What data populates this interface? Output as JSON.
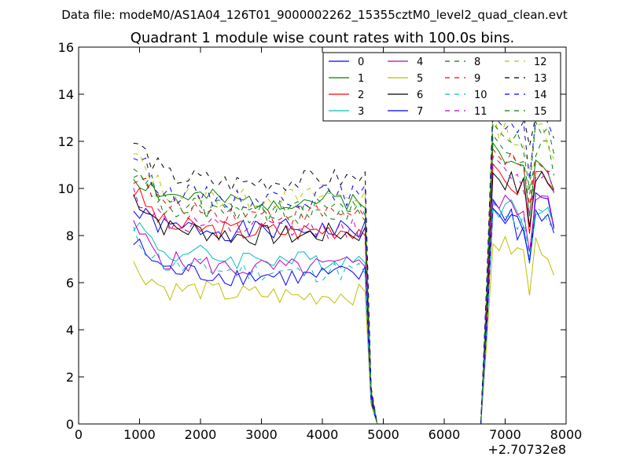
{
  "chart_data": {
    "type": "line",
    "suptitle": "Data file: modeM0/AS1A04_126T01_9000002262_15355cztM0_level2_quad_clean.evt",
    "title": "Quadrant 1 module wise count rates with 100.0s bins.",
    "xlabel": "",
    "ylabel": "",
    "xlim": [
      0,
      8000
    ],
    "ylim": [
      0,
      16
    ],
    "x_offset_label": "+2.70732e8",
    "xticks": [
      "0",
      "1000",
      "2000",
      "3000",
      "4000",
      "5000",
      "6000",
      "7000",
      "8000"
    ],
    "yticks": [
      "0",
      "2",
      "4",
      "6",
      "8",
      "10",
      "12",
      "14",
      "16"
    ],
    "legend_position": "top-right",
    "x": [
      900,
      1000,
      1100,
      1200,
      1300,
      1400,
      1500,
      1600,
      1700,
      1800,
      1900,
      2000,
      2100,
      2200,
      2300,
      2400,
      2500,
      2600,
      2700,
      2800,
      2900,
      3000,
      3100,
      3200,
      3300,
      3400,
      3500,
      3600,
      3700,
      3800,
      3900,
      4000,
      4100,
      4200,
      4300,
      4400,
      4500,
      4600,
      4700,
      4800,
      4900,
      5000,
      5100,
      5200,
      5300,
      5400,
      5500,
      5600,
      5700,
      5800,
      5900,
      6000,
      6100,
      6200,
      6300,
      6400,
      6500,
      6600,
      6700,
      6800,
      6900,
      7000,
      7100,
      7200,
      7300,
      7400,
      7500,
      7600,
      7700,
      7800
    ],
    "series": [
      {
        "name": "0",
        "color": "#0000ff",
        "dash": "solid",
        "active": [
          9.0,
          8.3,
          8.3,
          8.2,
          8.2,
          8.3,
          8.2,
          8.3
        ],
        "high": [
          9.3,
          8.8,
          8.9,
          8.0,
          9.0,
          9.5,
          9.6,
          8.5
        ]
      },
      {
        "name": "1",
        "color": "#008000",
        "dash": "solid",
        "active": [
          10.5,
          9.7,
          9.6,
          9.4,
          9.5,
          9.5,
          9.5,
          9.6
        ],
        "high": [
          11.6,
          11.1,
          11.2,
          10.8,
          10.9,
          11.5,
          11.4,
          10.4
        ]
      },
      {
        "name": "2",
        "color": "#ff0000",
        "dash": "solid",
        "active": [
          9.9,
          8.4,
          8.3,
          8.2,
          8.2,
          8.2,
          8.3,
          8.3
        ],
        "high": [
          10.6,
          10.2,
          10.3,
          10.0,
          10.1,
          10.6,
          10.7,
          9.7
        ]
      },
      {
        "name": "3",
        "color": "#00bfbf",
        "dash": "solid",
        "active": [
          8.6,
          7.2,
          7.2,
          7.0,
          7.1,
          6.9,
          7.0,
          7.0
        ],
        "high": [
          9.6,
          9.1,
          9.2,
          8.7,
          8.8,
          9.4,
          9.4,
          8.4
        ]
      },
      {
        "name": "4",
        "color": "#bf00bf",
        "dash": "solid",
        "active": [
          8.3,
          6.9,
          6.8,
          6.6,
          6.6,
          6.6,
          6.7,
          6.7
        ],
        "high": [
          9.8,
          9.4,
          9.4,
          9.1,
          9.2,
          9.6,
          9.6,
          8.6
        ]
      },
      {
        "name": "5",
        "color": "#bfbf00",
        "dash": "solid",
        "active": [
          6.7,
          5.7,
          5.7,
          5.5,
          5.5,
          5.4,
          5.5,
          5.5
        ],
        "high": [
          7.9,
          7.5,
          7.5,
          7.2,
          7.3,
          7.6,
          7.6,
          6.8
        ]
      },
      {
        "name": "6",
        "color": "#000000",
        "dash": "solid",
        "active": [
          9.7,
          8.3,
          8.2,
          8.0,
          8.0,
          8.0,
          8.1,
          8.1
        ],
        "high": [
          10.8,
          10.4,
          10.3,
          10.0,
          10.1,
          10.6,
          10.6,
          9.6
        ]
      },
      {
        "name": "7",
        "color": "#0000ff",
        "dash": "solid",
        "active": [
          7.7,
          6.5,
          6.4,
          6.3,
          6.3,
          6.2,
          6.3,
          6.3
        ],
        "high": [
          9.2,
          8.8,
          8.8,
          8.5,
          8.6,
          9.0,
          9.0,
          8.1
        ]
      },
      {
        "name": "8",
        "color": "#008000",
        "dash": "dashed",
        "active": [
          10.7,
          9.1,
          9.0,
          8.8,
          8.9,
          8.9,
          9.0,
          9.0
        ],
        "high": [
          12.2,
          11.7,
          11.7,
          11.2,
          11.3,
          11.9,
          11.9,
          10.8
        ]
      },
      {
        "name": "9",
        "color": "#ff0000",
        "dash": "dashed",
        "active": [
          10.6,
          9.2,
          9.1,
          8.9,
          8.9,
          8.9,
          9.0,
          9.0
        ],
        "high": [
          11.5,
          11.0,
          11.1,
          10.7,
          10.8,
          11.3,
          11.3,
          10.3
        ]
      },
      {
        "name": "10",
        "color": "#00bfbf",
        "dash": "dashed",
        "active": [
          8.0,
          6.7,
          6.6,
          6.5,
          6.5,
          6.4,
          6.5,
          6.5
        ],
        "high": [
          9.1,
          8.7,
          8.7,
          8.4,
          8.5,
          8.9,
          8.9,
          8.0
        ]
      },
      {
        "name": "11",
        "color": "#bf00bf",
        "dash": "dashed",
        "active": [
          9.8,
          8.5,
          8.4,
          8.2,
          8.3,
          8.2,
          8.3,
          8.3
        ],
        "high": [
          11.0,
          10.6,
          10.6,
          10.2,
          10.3,
          10.8,
          10.8,
          9.8
        ]
      },
      {
        "name": "12",
        "color": "#bfbf00",
        "dash": "dashed",
        "active": [
          11.4,
          9.8,
          9.7,
          9.5,
          9.6,
          9.6,
          9.7,
          9.7
        ],
        "high": [
          13.0,
          12.4,
          12.4,
          11.9,
          12.0,
          12.6,
          12.6,
          11.5
        ]
      },
      {
        "name": "13",
        "color": "#000000",
        "dash": "dashed",
        "active": [
          12.0,
          10.5,
          10.4,
          10.2,
          10.3,
          10.3,
          10.4,
          10.4
        ],
        "high": [
          14.0,
          13.4,
          13.4,
          12.9,
          13.0,
          13.6,
          13.6,
          12.4
        ]
      },
      {
        "name": "14",
        "color": "#0000ff",
        "dash": "dashed",
        "active": [
          11.5,
          9.8,
          9.7,
          9.5,
          9.6,
          9.6,
          9.7,
          9.7
        ],
        "high": [
          13.5,
          12.9,
          12.9,
          12.4,
          12.5,
          13.1,
          13.1,
          11.9
        ]
      },
      {
        "name": "15",
        "color": "#008000",
        "dash": "dashed",
        "active": [
          11.2,
          9.3,
          9.2,
          9.0,
          9.1,
          9.1,
          9.2,
          9.2
        ],
        "high": [
          13.0,
          12.4,
          12.4,
          11.9,
          12.0,
          12.6,
          12.6,
          11.5
        ]
      }
    ]
  }
}
